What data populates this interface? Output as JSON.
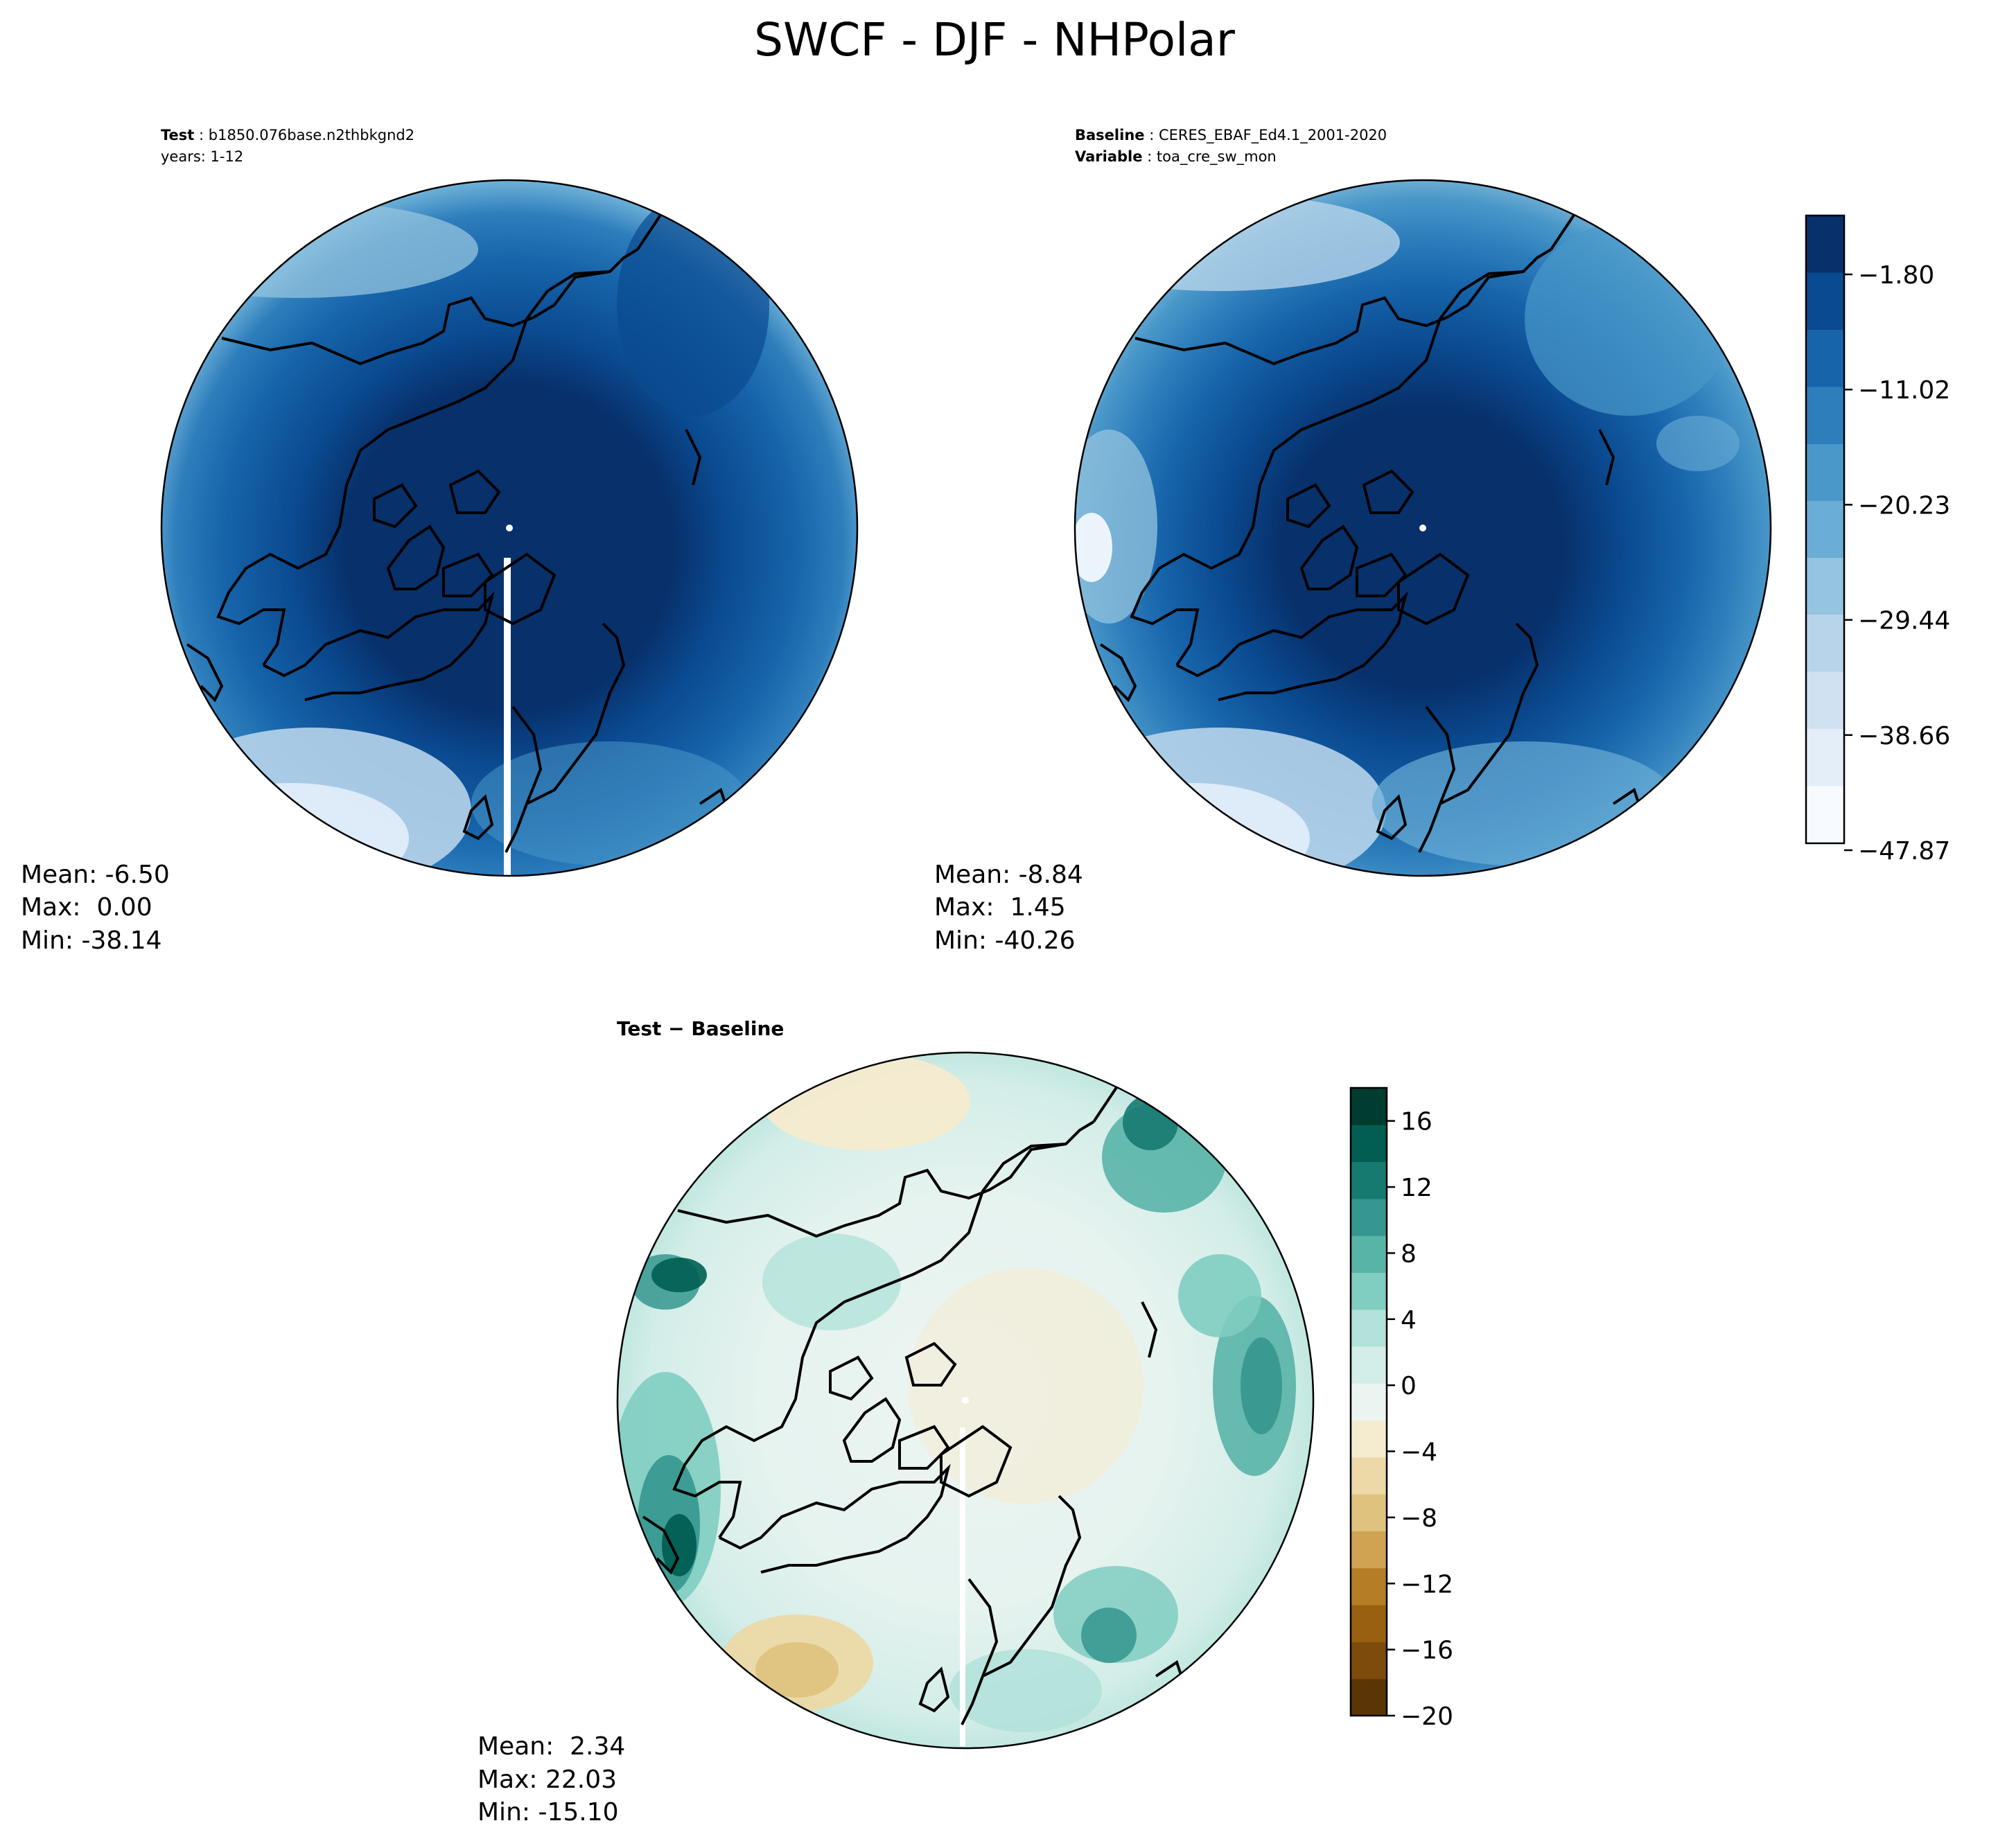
{
  "figure": {
    "title": "SWCF - DJF - NHPolar"
  },
  "panels": {
    "test": {
      "label_key": "Test",
      "label_value": "b1850.076base.n2thbkgnd2",
      "years": "years: 1-12",
      "stats": {
        "mean": "Mean: -6.50",
        "max": "Max:  0.00",
        "min": "Min: -38.14"
      }
    },
    "baseline": {
      "label_key": "Baseline",
      "label_value": "CERES_EBAF_Ed4.1_2001-2020",
      "var_key": "Variable",
      "var_value": "toa_cre_sw_mon",
      "stats": {
        "mean": "Mean: -8.84",
        "max": "Max:  1.45",
        "min": "Min: -40.26"
      }
    },
    "diff": {
      "title": "Test − Baseline",
      "stats": {
        "mean": "Mean:  2.34",
        "max": "Max: 22.03",
        "min": "Min: -15.10"
      }
    }
  },
  "chart_data": [
    {
      "type": "heatmap",
      "name": "Test",
      "projection": "north-polar-stereographic",
      "stats": {
        "mean": -6.5,
        "max": 0.0,
        "min": -38.14
      },
      "colorbar": "shared-blues"
    },
    {
      "type": "heatmap",
      "name": "Baseline",
      "projection": "north-polar-stereographic",
      "stats": {
        "mean": -8.84,
        "max": 1.45,
        "min": -40.26
      },
      "colorbar": {
        "cmap": "Blues_r",
        "ticks": [
          "−1.80",
          "−11.02",
          "−20.23",
          "−29.44",
          "−38.66",
          "−47.87"
        ],
        "range": [
          -47.87,
          2.8
        ]
      }
    },
    {
      "type": "heatmap",
      "name": "Test − Baseline",
      "projection": "north-polar-stereographic",
      "stats": {
        "mean": 2.34,
        "max": 22.03,
        "min": -15.1
      },
      "colorbar": {
        "cmap": "BrBG",
        "ticks": [
          "16",
          "12",
          "8",
          "4",
          "0",
          "−4",
          "−8",
          "−12",
          "−16",
          "−20"
        ],
        "range": [
          -20,
          18
        ]
      }
    }
  ],
  "colors": {
    "blues": [
      "#f7fbff",
      "#e3eef9",
      "#d0e2f2",
      "#b7d4ea",
      "#94c4df",
      "#6aaed6",
      "#4a98c9",
      "#2e7ebc",
      "#1764ab",
      "#0a4a90",
      "#08306b"
    ],
    "brbg": [
      "#5a3505",
      "#7d4b0c",
      "#99610f",
      "#b47d26",
      "#cfa351",
      "#dfc27d",
      "#ecd9a7",
      "#f5ebcf",
      "#ecf4f2",
      "#d3ede8",
      "#b2e2da",
      "#80cdc1",
      "#59b4a8",
      "#35978f",
      "#167a71",
      "#015e52",
      "#003c30"
    ]
  }
}
